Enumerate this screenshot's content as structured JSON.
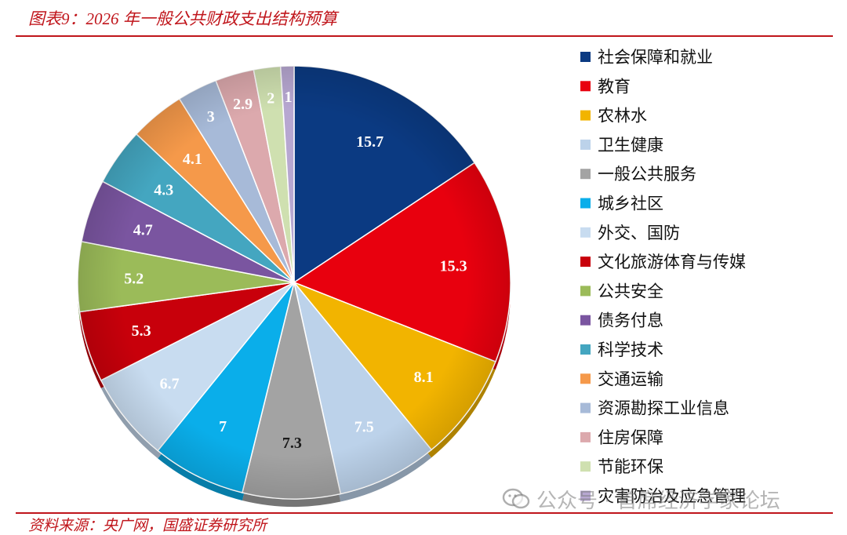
{
  "figure": {
    "title": "图表9：2026 年一般公共财政支出结构预算",
    "source": "资料来源：央广网，国盛证券研究所",
    "watermark_text": "公众号 · 首席经济学家论坛"
  },
  "chart_data": {
    "type": "pie",
    "title": "图表9：2026 年一般公共财政支出结构预算",
    "legend_position": "right",
    "start_angle_deg": 0,
    "direction": "clockwise",
    "slices": [
      {
        "label": "社会保障和就业",
        "value": 15.7,
        "display": "15.7",
        "color": "#0b3a82",
        "label_color": "#ffffff"
      },
      {
        "label": "教育",
        "value": 15.3,
        "display": "15.3",
        "color": "#e8000e",
        "label_color": "#ffffff"
      },
      {
        "label": "农林水",
        "value": 8.1,
        "display": "8.1",
        "color": "#f2b400",
        "label_color": "#ffffff"
      },
      {
        "label": "卫生健康",
        "value": 7.5,
        "display": "7.5",
        "color": "#bcd2ea",
        "label_color": "#ffffff"
      },
      {
        "label": "一般公共服务",
        "value": 7.3,
        "display": "7.3",
        "color": "#a3a3a3",
        "label_color": "#1a1a1a"
      },
      {
        "label": "城乡社区",
        "value": 7,
        "display": "7",
        "color": "#0aaeea",
        "label_color": "#ffffff"
      },
      {
        "label": "外交、国防",
        "value": 6.7,
        "display": "6.7",
        "color": "#c8dcf0",
        "label_color": "#ffffff"
      },
      {
        "label": "文化旅游体育与传媒",
        "value": 5.3,
        "display": "5.3",
        "color": "#c8000b",
        "label_color": "#ffffff"
      },
      {
        "label": "公共安全",
        "value": 5.2,
        "display": "5.2",
        "color": "#9bbb59",
        "label_color": "#ffffff"
      },
      {
        "label": "债务付息",
        "value": 4.7,
        "display": "4.7",
        "color": "#7a55a0",
        "label_color": "#ffffff"
      },
      {
        "label": "科学技术",
        "value": 4.3,
        "display": "4.3",
        "color": "#44a6c0",
        "label_color": "#ffffff"
      },
      {
        "label": "交通运输",
        "value": 4.1,
        "display": "4.1",
        "color": "#f5994a",
        "label_color": "#ffffff"
      },
      {
        "label": "资源勘探工业信息",
        "value": 3,
        "display": "3",
        "color": "#a7bad8",
        "label_color": "#ffffff"
      },
      {
        "label": "住房保障",
        "value": 2.9,
        "display": "2.9",
        "color": "#dca9ad",
        "label_color": "#ffffff"
      },
      {
        "label": "节能环保",
        "value": 2,
        "display": "2",
        "color": "#cfe0b0",
        "label_color": "#ffffff"
      },
      {
        "label": "灾害防治及应急管理",
        "value": 1,
        "display": "1",
        "color": "#b7a7d1",
        "label_color": "#ffffff"
      }
    ]
  }
}
